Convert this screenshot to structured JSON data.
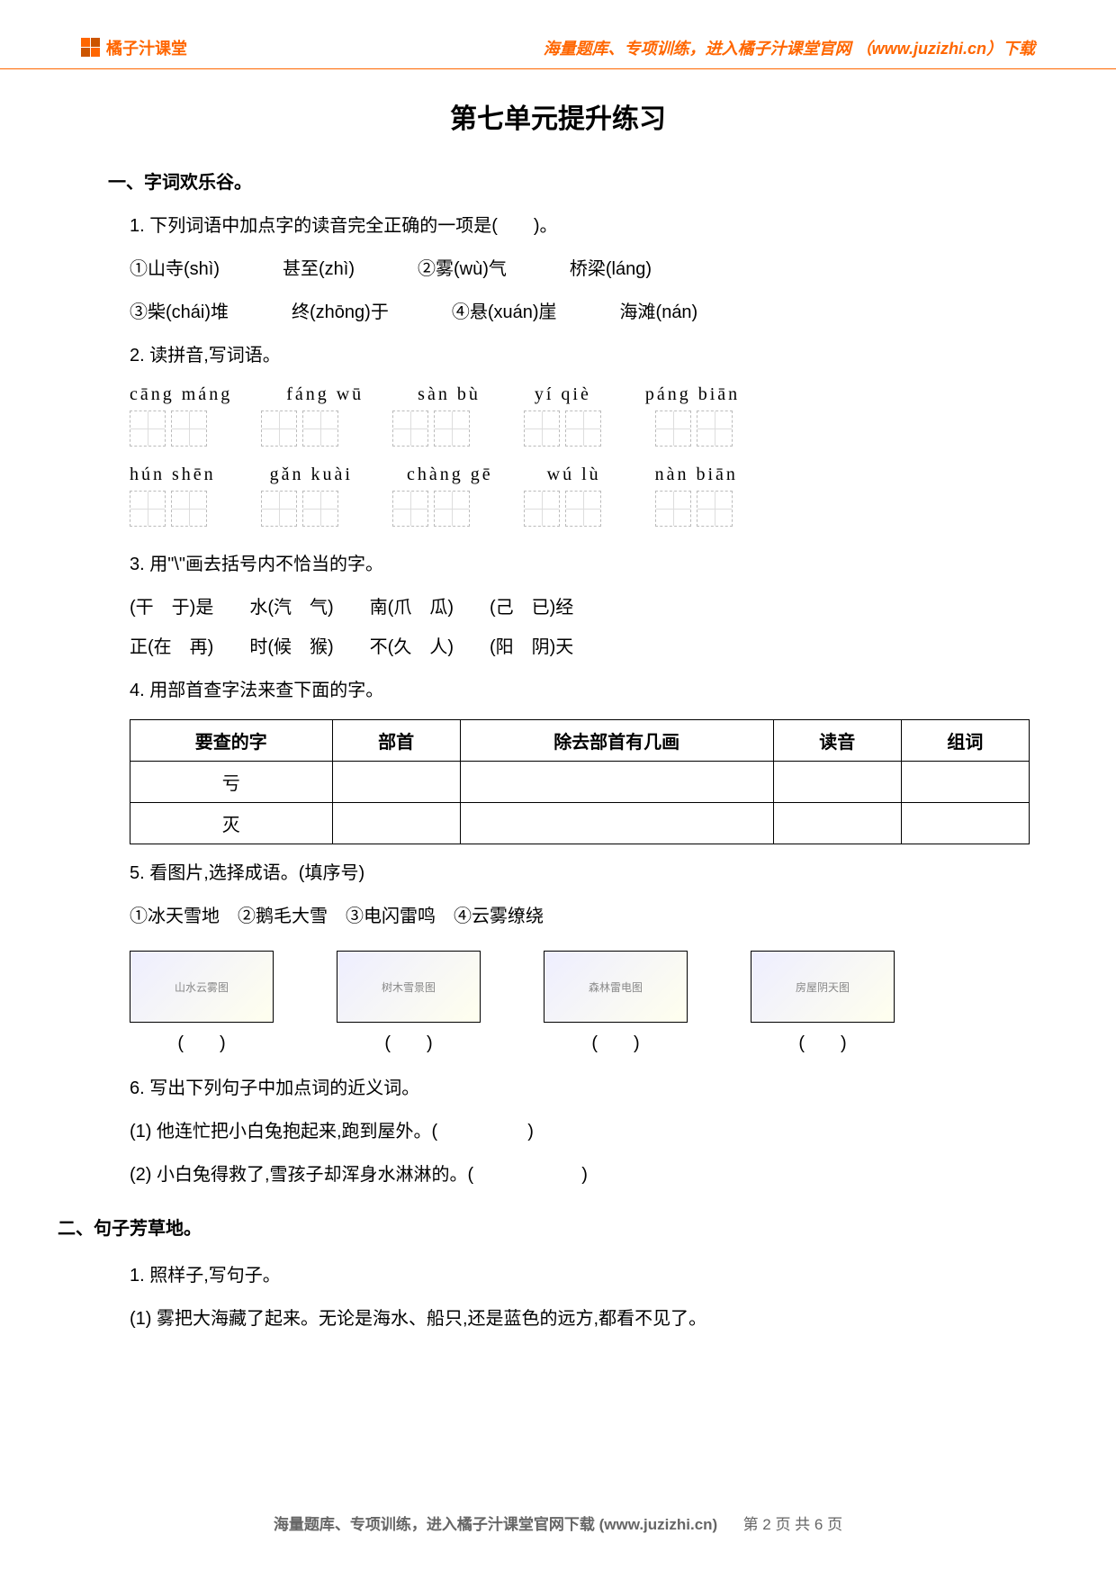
{
  "header": {
    "logo_text": "橘子汁课堂",
    "right_text": "海量题库、专项训练，进入橘子汁课堂官网 （www.juzizhi.cn）下载"
  },
  "title": "第七单元提升练习",
  "section1": {
    "label": "一、字词欢乐谷。",
    "q1": {
      "stem": "1. 下列词语中加点字的读音完全正确的一项是(　　)。",
      "opts_row1": [
        "①山寺(shì)",
        "甚至(zhì)",
        "②雾(wù)气",
        "桥梁(láng)"
      ],
      "opts_row2": [
        "③柴(chái)堆",
        "终(zhōng)于",
        "④悬(xuán)崖",
        "海滩(nán)"
      ]
    },
    "q2": {
      "stem": "2. 读拼音,写词语。",
      "row1": [
        "cāng máng",
        "fáng wū",
        "sàn bù",
        "yí qiè",
        "páng biān"
      ],
      "row2": [
        "hún shēn",
        "gǎn kuài",
        "chàng gē",
        "wú lù",
        "nàn biān"
      ]
    },
    "q3": {
      "stem": "3. 用\"\\\"画去括号内不恰当的字。",
      "row1": [
        "(干　于)是",
        "水(汽　气)",
        "南(爪　瓜)",
        "(己　已)经"
      ],
      "row2": [
        "正(在　再)",
        "时(候　猴)",
        "不(久　人)",
        "(阳　阴)天"
      ]
    },
    "q4": {
      "stem": "4. 用部首查字法来查下面的字。",
      "headers": [
        "要查的字",
        "部首",
        "除去部首有几画",
        "读音",
        "组词"
      ],
      "rows": [
        [
          "亏",
          "",
          "",
          "",
          ""
        ],
        [
          "灭",
          "",
          "",
          "",
          ""
        ]
      ]
    },
    "q5": {
      "stem": "5. 看图片,选择成语。(填序号)",
      "options": "①冰天雪地　②鹅毛大雪　③电闪雷鸣　④云雾缭绕",
      "image_alts": [
        "山水云雾图",
        "树木雪景图",
        "森林雷电图",
        "房屋阴天图"
      ],
      "blanks": [
        "(　　)",
        "(　　)",
        "(　　)",
        "(　　)"
      ]
    },
    "q6": {
      "stem": "6. 写出下列句子中加点词的近义词。",
      "items": [
        "(1) 他连忙把小白兔抱起来,跑到屋外。(　　　　　)",
        "(2) 小白兔得救了,雪孩子却浑身水淋淋的。(　　　　　　)"
      ]
    }
  },
  "section2": {
    "label": "二、句子芳草地。",
    "q1": {
      "stem": "1. 照样子,写句子。",
      "item": "(1) 雾把大海藏了起来。无论是海水、船只,还是蓝色的远方,都看不见了。"
    }
  },
  "footer": {
    "text": "海量题库、专项训练，进入橘子汁课堂官网下载 (www.juzizhi.cn)",
    "page": "第 2 页 共 6 页"
  },
  "colors": {
    "accent": "#ff6600",
    "text": "#000000",
    "border": "#000000"
  }
}
